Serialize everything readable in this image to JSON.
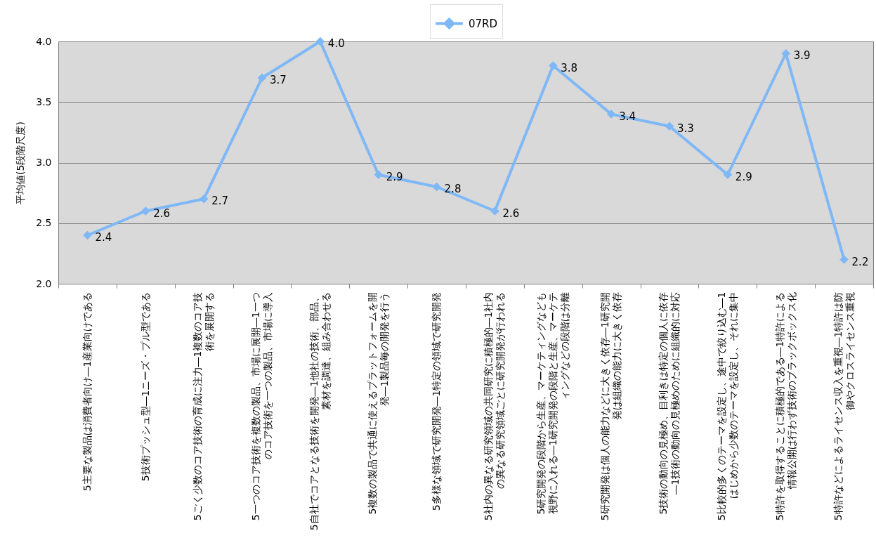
{
  "chart_data": {
    "type": "line",
    "ylabel": "平均値(5段階尺度)",
    "categories": [
      "5主要な製品は消費者向け―1産業向けである",
      "5技術プッシュ型―1ニーズ・プル型である",
      "5ごく少数のコア技術の育成に注力―1複数のコア技術を展開する",
      "5一つのコア技術を複数の製品、市場に展開―1一つのコア技術を一つの製品、市場に導入",
      "5自社でコアとなる技術を開発―1他社の技術、部品、素材を調達、組み合わせる",
      "5複数の製品で共通に使えるプラットフォームを開発―1製品毎の開発を行う",
      "5多様な領域で研究開発―1特定の領域で研究開発",
      "5社内の異なる研究領域の共同研究に積極的―1社内の異なる研究領域ごとに研究開発が行われる",
      "5研究開発の段階から生産、マーケティングなども視野に入れる―1研究開発の段階と生産、マーケティングなどの段階は分離",
      "5研究開発は個人の能力などに大きく依存―1研究開発は組織の能力に大きく依存",
      "5技術の動向の見極め、目利きは特定の個人に依存―1技術の動向の見極めのために組織的に対応",
      "5比較的多くのテーマを設定し、途中で絞り込む―1はじめから少数のテーマを設定し、それに集中",
      "5特許を取得することに積極的である―1特許による情報公開は行わず技術のブラックボックス化",
      "5特許などによるライセンス収入を重視―1特許は防御やクロスライセンス重視"
    ],
    "series": [
      {
        "name": "07RD",
        "color": "#7fb8f6",
        "values": [
          2.4,
          2.6,
          2.7,
          3.7,
          4.0,
          2.9,
          2.8,
          2.6,
          3.8,
          3.4,
          3.3,
          2.9,
          3.9,
          2.2
        ],
        "value_labels": [
          "2.4",
          "2.6",
          "2.7",
          "3.7",
          "4.0",
          "2.9",
          "2.8",
          "2.6",
          "3.8",
          "3.4",
          "3.3",
          "2.9",
          "3.9",
          "2.2"
        ]
      }
    ],
    "ylim": [
      2,
      4
    ],
    "yticks": [
      {
        "value": 2,
        "label": "2.0"
      },
      {
        "value": 2.5,
        "label": "2.5"
      },
      {
        "value": 3,
        "label": "3.0"
      },
      {
        "value": 3.5,
        "label": "3.5"
      },
      {
        "value": 4,
        "label": "4.0"
      }
    ],
    "grid": "y",
    "legend": "top",
    "marker": "diamond"
  }
}
